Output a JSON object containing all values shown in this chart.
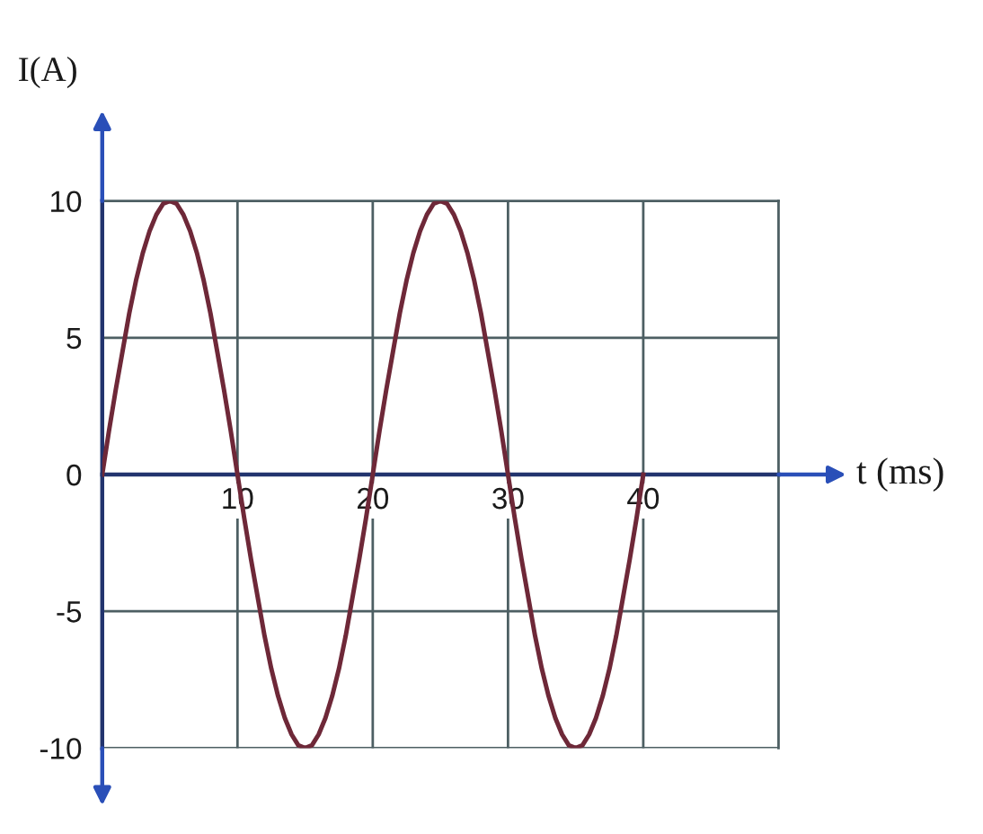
{
  "chart_data": {
    "type": "line",
    "xlabel": "t (ms)",
    "ylabel": "I(A)",
    "x": [
      0,
      0.5,
      1,
      1.5,
      2,
      2.5,
      3,
      3.5,
      4,
      4.5,
      5,
      5.5,
      6,
      6.5,
      7,
      7.5,
      8,
      8.5,
      9,
      9.5,
      10,
      10.5,
      11,
      11.5,
      12,
      12.5,
      13,
      13.5,
      14,
      14.5,
      15,
      15.5,
      16,
      16.5,
      17,
      17.5,
      18,
      18.5,
      19,
      19.5,
      20,
      20.5,
      21,
      21.5,
      22,
      22.5,
      23,
      23.5,
      24,
      24.5,
      25,
      25.5,
      26,
      26.5,
      27,
      27.5,
      28,
      28.5,
      29,
      29.5,
      30,
      30.5,
      31,
      31.5,
      32,
      32.5,
      33,
      33.5,
      34,
      34.5,
      35,
      35.5,
      36,
      36.5,
      37,
      37.5,
      38,
      38.5,
      39,
      39.5,
      40
    ],
    "series": [
      {
        "color": "#6e2838",
        "values": [
          0,
          1.6,
          3.1,
          4.5,
          5.9,
          7.1,
          8.1,
          8.9,
          9.5,
          9.9,
          10,
          9.9,
          9.5,
          8.9,
          8.1,
          7.1,
          5.9,
          4.5,
          3.1,
          1.6,
          0,
          -1.6,
          -3.1,
          -4.5,
          -5.9,
          -7.1,
          -8.1,
          -8.9,
          -9.5,
          -9.9,
          -10,
          -9.9,
          -9.5,
          -8.9,
          -8.1,
          -7.1,
          -5.9,
          -4.5,
          -3.1,
          -1.6,
          0,
          1.6,
          3.1,
          4.5,
          5.9,
          7.1,
          8.1,
          8.9,
          9.5,
          9.9,
          10,
          9.9,
          9.5,
          8.9,
          8.1,
          7.1,
          5.9,
          4.5,
          3.1,
          1.6,
          0,
          -1.6,
          -3.1,
          -4.5,
          -5.9,
          -7.1,
          -8.1,
          -8.9,
          -9.5,
          -9.9,
          -10,
          -9.9,
          -9.5,
          -8.9,
          -8.1,
          -7.1,
          -5.9,
          -4.5,
          -3.1,
          -1.6,
          0
        ]
      }
    ],
    "xlim": [
      0,
      50
    ],
    "ylim": [
      -10,
      10
    ],
    "xticks": [
      10,
      20,
      30,
      40
    ],
    "yticks": [
      -10,
      -5,
      0,
      5,
      10
    ],
    "grid": true,
    "line_style": "solid"
  }
}
